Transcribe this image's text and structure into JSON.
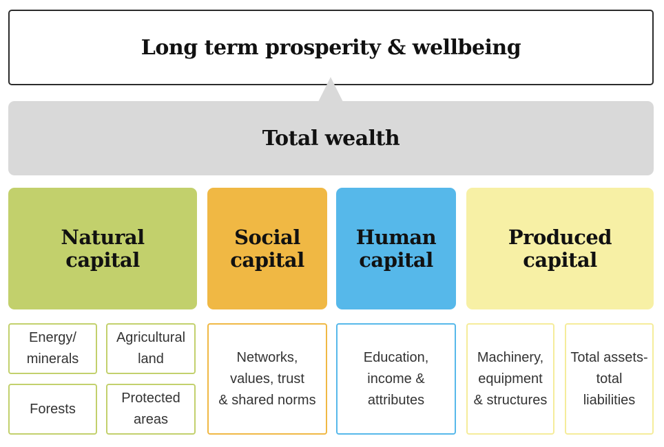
{
  "top": {
    "title": "Long term prosperity & wellbeing"
  },
  "wealth": {
    "title": "Total wealth"
  },
  "colors": {
    "natural": "#c2d06c",
    "social": "#f0b844",
    "human": "#56b8ea",
    "produced": "#f7f0a5",
    "wealth_bg": "#d9d9d9",
    "natural_border": "#c2d06c",
    "social_border": "#f0b844",
    "human_border": "#56b8ea",
    "produced_border": "#f5ec9a"
  },
  "capitals": {
    "natural": {
      "title": "Natural\ncapital",
      "items": [
        "Energy/\nminerals",
        "Agricultural\nland",
        "Forests",
        "Protected\nareas"
      ]
    },
    "social": {
      "title": "Social\ncapital",
      "items": [
        "Networks,\nvalues, trust\n& shared norms"
      ]
    },
    "human": {
      "title": "Human\ncapital",
      "items": [
        "Education,\nincome &\nattributes"
      ]
    },
    "produced": {
      "title": "Produced\ncapital",
      "items": [
        "Machinery,\nequipment\n& structures",
        "Total assets-\ntotal\nliabilities"
      ]
    }
  }
}
